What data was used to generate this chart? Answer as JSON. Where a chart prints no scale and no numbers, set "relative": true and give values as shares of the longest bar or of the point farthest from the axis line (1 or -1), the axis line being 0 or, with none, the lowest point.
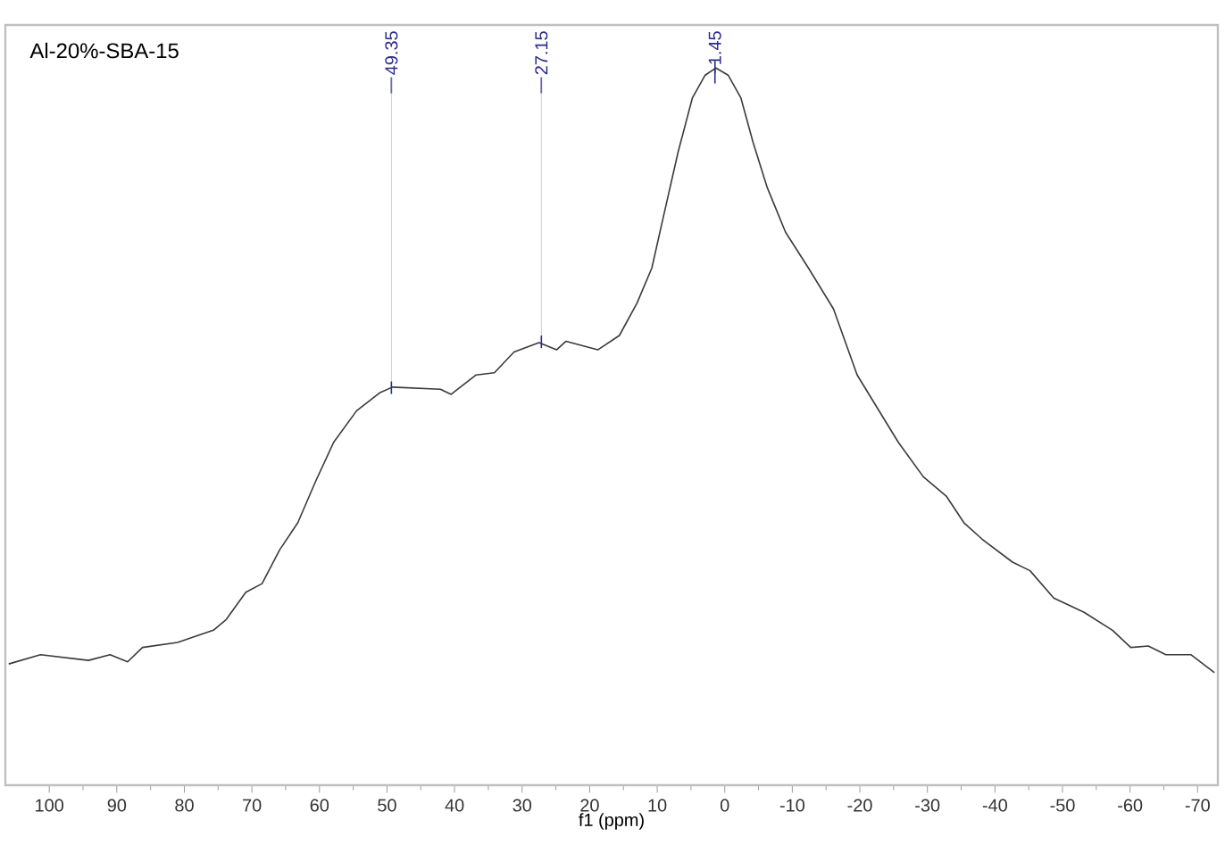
{
  "chart_data": {
    "type": "line",
    "title": "Al-20%-SBA-15",
    "xlabel": "f1 (ppm)",
    "relative": true,
    "color": "#3a3a3a",
    "xlim": [
      106.5,
      -73
    ],
    "xticks": [
      100,
      90,
      80,
      70,
      60,
      50,
      40,
      30,
      20,
      10,
      0,
      -10,
      -20,
      -30,
      -40,
      -50,
      -60,
      -70
    ],
    "x": [
      106,
      101.3,
      94.2,
      91.0,
      88.4,
      86.2,
      81.0,
      75.7,
      73.8,
      70.9,
      68.5,
      65.9,
      63.2,
      60.6,
      57.9,
      54.5,
      51.1,
      49.2,
      42.1,
      40.5,
      36.8,
      34.1,
      31.2,
      27.5,
      24.9,
      23.5,
      18.8,
      15.6,
      13.0,
      10.8,
      9.0,
      6.9,
      4.8,
      2.9,
      1.3,
      -0.5,
      -2.4,
      -4.2,
      -6.3,
      -9.0,
      -12.4,
      -16.1,
      -19.6,
      -25.7,
      -29.4,
      -32.8,
      -35.4,
      -38.1,
      -42.6,
      -45.2,
      -48.7,
      -53.2,
      -57.4,
      -60.1,
      -62.7,
      -65.3,
      -69.0,
      -72.5
    ],
    "values": [
      0.169,
      0.182,
      0.174,
      0.182,
      0.172,
      0.192,
      0.199,
      0.216,
      0.231,
      0.269,
      0.281,
      0.328,
      0.366,
      0.423,
      0.478,
      0.522,
      0.547,
      0.555,
      0.552,
      0.545,
      0.572,
      0.575,
      0.604,
      0.617,
      0.607,
      0.619,
      0.607,
      0.627,
      0.672,
      0.721,
      0.796,
      0.883,
      0.958,
      0.99,
      1,
      0.99,
      0.958,
      0.896,
      0.833,
      0.771,
      0.721,
      0.664,
      0.572,
      0.478,
      0.43,
      0.403,
      0.366,
      0.343,
      0.311,
      0.299,
      0.261,
      0.241,
      0.216,
      0.192,
      0.194,
      0.182,
      0.182,
      0.157
    ],
    "annotations": [
      {
        "text": "49.35",
        "x": 49.35,
        "y": 0.553
      },
      {
        "text": "27.15",
        "x": 27.15,
        "y": 0.617
      },
      {
        "text": "1.45",
        "x": 1.45,
        "y": 1
      }
    ]
  }
}
